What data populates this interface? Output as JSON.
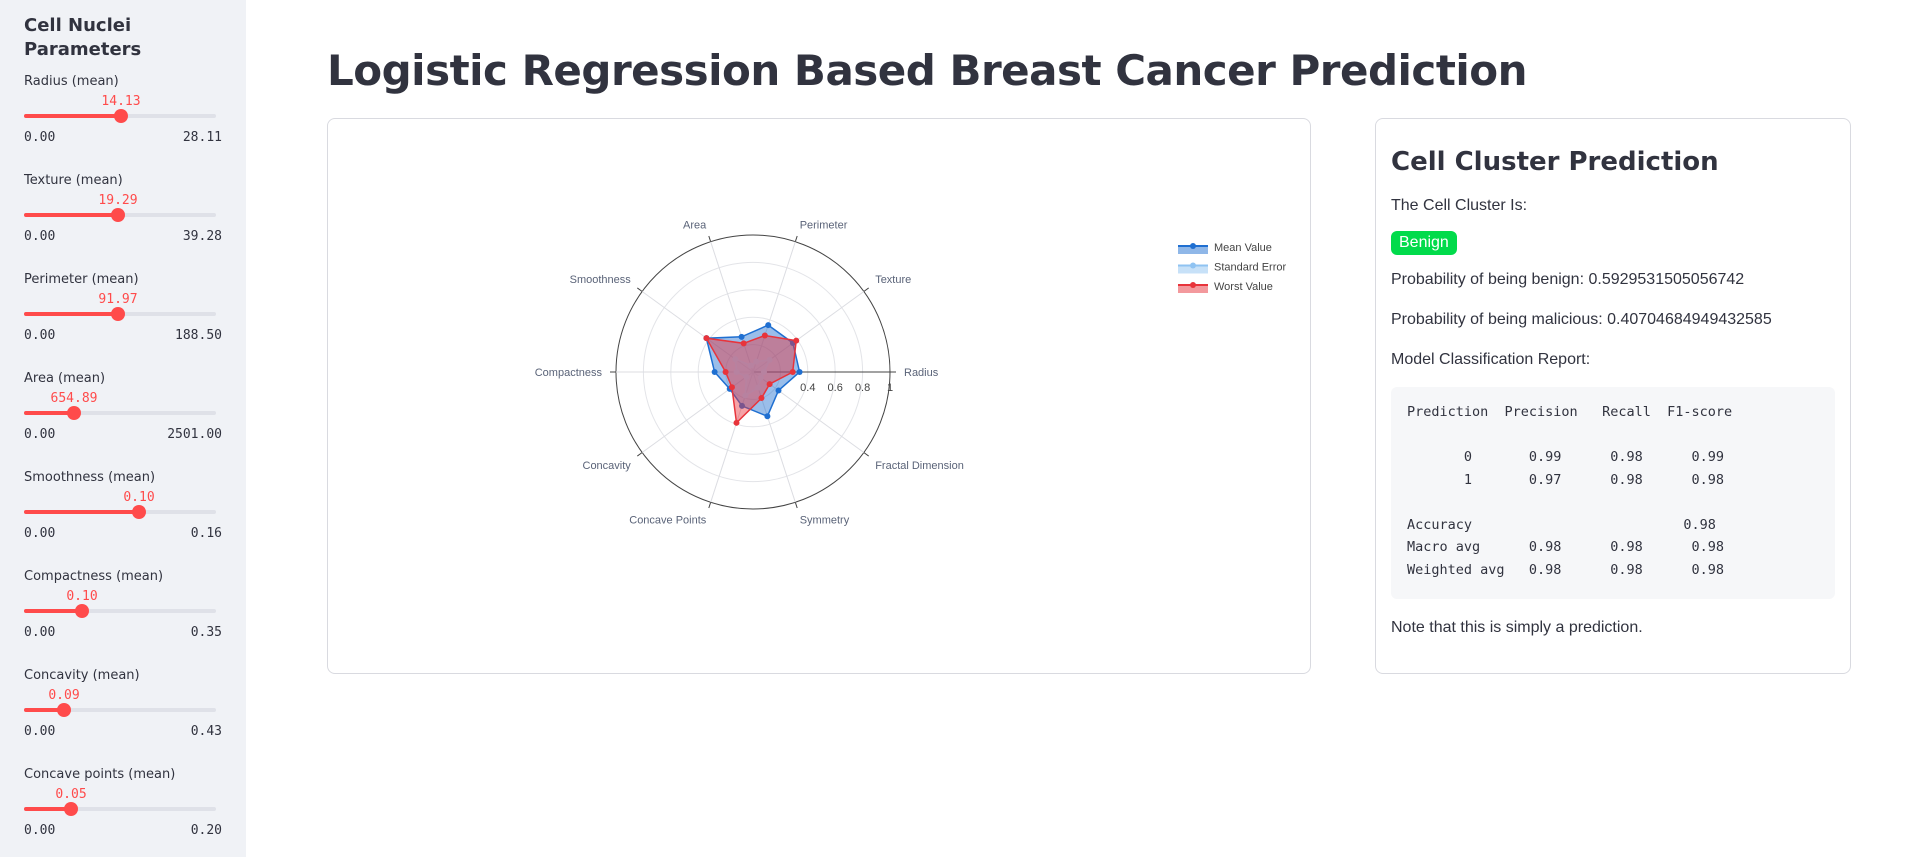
{
  "sidebar": {
    "title": "Cell Nuclei Parameters",
    "sliders": [
      {
        "label": "Radius (mean)",
        "value": "14.13",
        "min": "0.00",
        "max": "28.11",
        "fraction": 0.503
      },
      {
        "label": "Texture (mean)",
        "value": "19.29",
        "min": "0.00",
        "max": "39.28",
        "fraction": 0.491
      },
      {
        "label": "Perimeter (mean)",
        "value": "91.97",
        "min": "0.00",
        "max": "188.50",
        "fraction": 0.488
      },
      {
        "label": "Area (mean)",
        "value": "654.89",
        "min": "0.00",
        "max": "2501.00",
        "fraction": 0.262
      },
      {
        "label": "Smoothness (mean)",
        "value": "0.10",
        "min": "0.00",
        "max": "0.16",
        "fraction": 0.6
      },
      {
        "label": "Compactness (mean)",
        "value": "0.10",
        "min": "0.00",
        "max": "0.35",
        "fraction": 0.3
      },
      {
        "label": "Concavity (mean)",
        "value": "0.09",
        "min": "0.00",
        "max": "0.43",
        "fraction": 0.207
      },
      {
        "label": "Concave points (mean)",
        "value": "0.05",
        "min": "0.00",
        "max": "0.20",
        "fraction": 0.243
      }
    ]
  },
  "main": {
    "title": "Logistic Regression Based Breast Cancer Prediction"
  },
  "chart_data": {
    "type": "radar",
    "categories": [
      "Radius",
      "Texture",
      "Perimeter",
      "Area",
      "Smoothness",
      "Compactness",
      "Concavity",
      "Concave Points",
      "Symmetry",
      "Fractal Dimension"
    ],
    "radial_ticks": [
      "0.4",
      "0.6",
      "0.8",
      "1"
    ],
    "rlim": [
      0,
      1
    ],
    "legend_position": "top-right",
    "series": [
      {
        "name": "Mean Value",
        "color": "#1f6fd1",
        "fill": "#1f6fd1",
        "values": [
          0.34,
          0.36,
          0.36,
          0.27,
          0.42,
          0.28,
          0.21,
          0.26,
          0.34,
          0.23
        ]
      },
      {
        "name": "Standard Error",
        "color": "#8fc3f2",
        "fill": "#8fc3f2",
        "values": [
          0.08,
          0.15,
          0.08,
          0.05,
          0.16,
          0.12,
          0.06,
          0.18,
          0.12,
          0.07
        ]
      },
      {
        "name": "Worst Value",
        "color": "#e8343b",
        "fill": "#e8343b",
        "values": [
          0.29,
          0.39,
          0.28,
          0.22,
          0.42,
          0.2,
          0.19,
          0.39,
          0.2,
          0.15
        ]
      }
    ]
  },
  "prediction": {
    "title": "Cell Cluster Prediction",
    "cluster_label": "The Cell Cluster Is:",
    "result": "Benign",
    "prob_benign": "Probability of being benign: 0.5929531505056742",
    "prob_malicious": "Probability of being malicious: 0.40704684949432585",
    "report_label": "Model Classification Report:",
    "report": "Prediction  Precision   Recall  F1-score\n\n       0       0.99      0.98      0.99\n       1       0.97      0.98      0.98\n\nAccuracy                          0.98\nMacro avg      0.98      0.98      0.98\nWeighted avg   0.98      0.98      0.98",
    "note": "Note that this is simply a prediction."
  },
  "colors": {
    "accent": "#ff4b4b",
    "benign_badge": "#01db4b",
    "sidebar_bg": "#f0f2f6"
  }
}
